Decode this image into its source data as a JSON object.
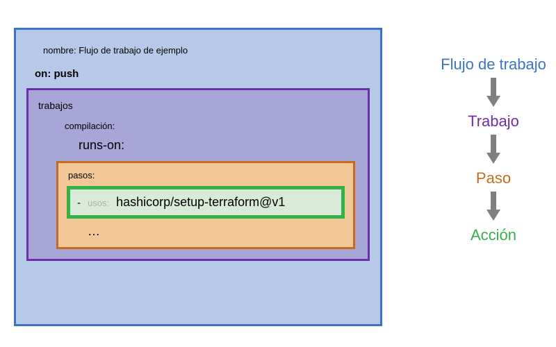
{
  "diagram": {
    "workflow": {
      "border_color": "#3b74c4",
      "bg_color": "#b6c9e6",
      "name_label": "nombre: Flujo de trabajo de ejemplo",
      "on_label": "on: push",
      "name_color": "#333333",
      "on_color": "#000000"
    },
    "jobs": {
      "border_color": "#6a2fa8",
      "bg_color": "#a8a6d6",
      "label": "trabajos",
      "compile_label": "compilación:",
      "runs_label": "runs-on:",
      "label_color": "#000000"
    },
    "steps": {
      "border_color": "#c86b1f",
      "bg_color": "#f2c797",
      "label": "pasos:",
      "ellipsis": "…",
      "label_color": "#444444"
    },
    "action": {
      "border_color": "#34b24a",
      "bg_color": "#d9ead9",
      "dash": "-",
      "uses_label": "usos:",
      "uses_color": "#b0b0b0",
      "text": "hashicorp/setup-terraform@v1",
      "text_color": "#333333"
    }
  },
  "legend": {
    "items": [
      {
        "label": "Flujo de trabajo",
        "color": "#3b74c4"
      },
      {
        "label": "Trabajo",
        "color": "#6a2fa8"
      },
      {
        "label": "Paso",
        "color": "#c86b1f"
      },
      {
        "label": "Acción",
        "color": "#34b24a"
      }
    ],
    "arrow_color": "#808080",
    "fontsize": 22
  }
}
